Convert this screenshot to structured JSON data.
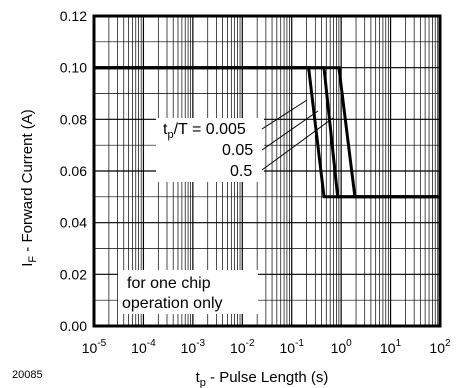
{
  "chart_data": {
    "type": "line",
    "xscale": "log",
    "xlim": [
      1e-05,
      100
    ],
    "ylim": [
      0,
      0.12
    ],
    "grid": true,
    "x_ticks": [
      {
        "base": "10",
        "exp": "-5"
      },
      {
        "base": "10",
        "exp": "-4"
      },
      {
        "base": "10",
        "exp": "-3"
      },
      {
        "base": "10",
        "exp": "-2"
      },
      {
        "base": "10",
        "exp": "-1"
      },
      {
        "base": "10",
        "exp": "0"
      },
      {
        "base": "10",
        "exp": "1"
      },
      {
        "base": "10",
        "exp": "2"
      }
    ],
    "y_ticks": [
      "0.00",
      "0.02",
      "0.04",
      "0.06",
      "0.08",
      "0.10",
      "0.12"
    ],
    "xlabel": {
      "main": "t",
      "sub": "p",
      "rest": " - Pulse Length (s)"
    },
    "ylabel": {
      "main": "I",
      "sub": "F",
      "rest": " - Forward Current (A)"
    },
    "series": [
      {
        "name": "t_p/T = 0.005",
        "points": [
          [
            1e-05,
            0.1
          ],
          [
            0.22,
            0.1
          ],
          [
            0.45,
            0.05
          ],
          [
            100,
            0.05
          ]
        ]
      },
      {
        "name": "0.05",
        "points": [
          [
            1e-05,
            0.1
          ],
          [
            0.45,
            0.1
          ],
          [
            0.85,
            0.05
          ],
          [
            100,
            0.05
          ]
        ]
      },
      {
        "name": "0.5",
        "points": [
          [
            1e-05,
            0.1
          ],
          [
            0.9,
            0.1
          ],
          [
            1.9,
            0.05
          ],
          [
            100,
            0.05
          ]
        ]
      }
    ],
    "annotations": {
      "duty_label": {
        "t": "t",
        "sub": "p",
        "rest": "/T = 0.005"
      },
      "duty_2": "0.05",
      "duty_3": "0.5",
      "note_line1": "for one chip",
      "note_line2": "operation only"
    },
    "figure_id": "20085"
  }
}
